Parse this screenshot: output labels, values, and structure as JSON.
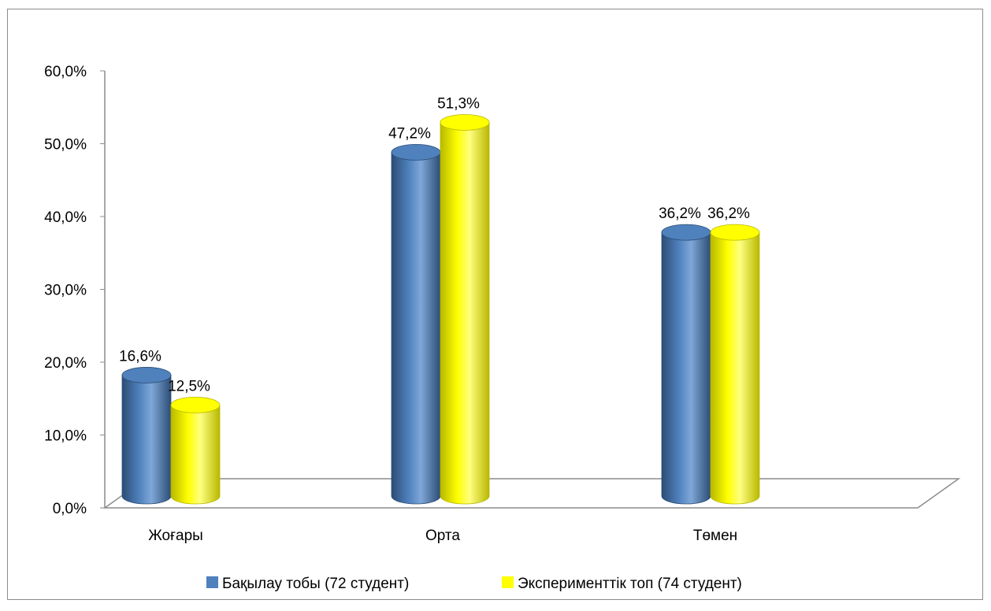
{
  "chart_data": {
    "type": "bar",
    "title": "",
    "xlabel": "",
    "ylabel": "",
    "categories": [
      "Жоғары",
      "Орта",
      "Төмен"
    ],
    "series": [
      {
        "name": "Бақылау тобы (72 студент)",
        "values": [
          16.6,
          47.2,
          36.2
        ],
        "labels": [
          "16,6%",
          "47,2%",
          "36,2%"
        ],
        "color": "#4f81bd",
        "color_dark": "#2c4d75",
        "color_light": "#7fa7d8"
      },
      {
        "name": "Эксперименттік топ (74 студент)",
        "values": [
          12.5,
          51.3,
          36.2
        ],
        "labels": [
          "12,5%",
          "51,3%",
          "36,2%"
        ],
        "color": "#ffff00",
        "color_dark": "#b8b800",
        "color_light": "#ffff80"
      }
    ],
    "ylim": [
      0,
      60
    ],
    "yticks": [
      0,
      10,
      20,
      30,
      40,
      50,
      60
    ],
    "ytick_labels": [
      "0,0%",
      "10,0%",
      "20,0%",
      "30,0%",
      "40,0%",
      "50,0%",
      "60,0%"
    ],
    "grid": false,
    "legend_position": "bottom",
    "style": "3d-cylinder"
  }
}
